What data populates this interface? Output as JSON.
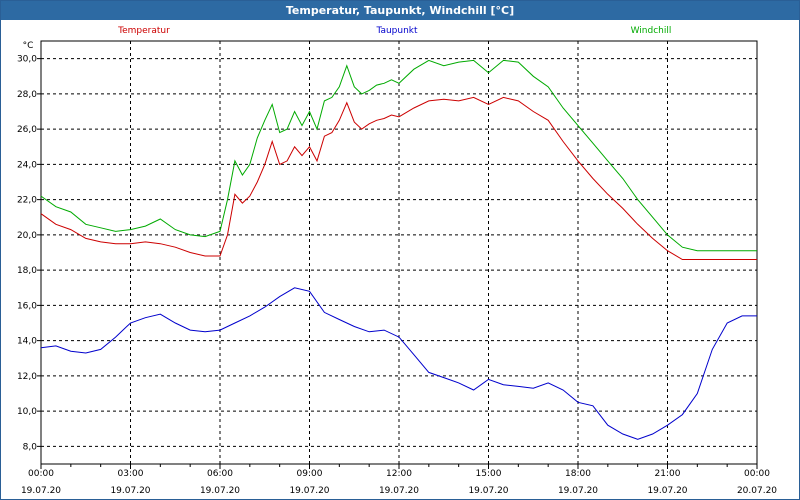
{
  "window": {
    "title": "Temperatur, Taupunkt, Windchill [°C]"
  },
  "chart_data": {
    "type": "line",
    "title": "Temperatur, Taupunkt, Windchill [°C]",
    "ylabel": "°C",
    "ylim": [
      7.0,
      31.0
    ],
    "yticks": [
      "8,0",
      "10,0",
      "12,0",
      "14,0",
      "16,0",
      "18,0",
      "20,0",
      "22,0",
      "24,0",
      "26,0",
      "28,0",
      "30,0"
    ],
    "xlim_hours": [
      0,
      24
    ],
    "xticks": [
      {
        "time": "00:00",
        "date": "19.07.20"
      },
      {
        "time": "03:00",
        "date": "19.07.20"
      },
      {
        "time": "06:00",
        "date": "19.07.20"
      },
      {
        "time": "09:00",
        "date": "19.07.20"
      },
      {
        "time": "12:00",
        "date": "19.07.20"
      },
      {
        "time": "15:00",
        "date": "19.07.20"
      },
      {
        "time": "18:00",
        "date": "19.07.20"
      },
      {
        "time": "21:00",
        "date": "19.07.20"
      },
      {
        "time": "00:00",
        "date": "20.07.20"
      }
    ],
    "grid": true,
    "legend": "top",
    "series": [
      {
        "name": "Temperatur",
        "color": "#cc0000",
        "x": [
          0,
          0.5,
          1,
          1.5,
          2,
          2.5,
          3,
          3.5,
          4,
          4.5,
          5,
          5.5,
          6,
          6.25,
          6.5,
          6.75,
          7,
          7.25,
          7.5,
          7.75,
          8,
          8.25,
          8.5,
          8.75,
          9,
          9.25,
          9.5,
          9.75,
          10,
          10.25,
          10.5,
          10.75,
          11,
          11.25,
          11.5,
          11.75,
          12,
          12.5,
          13,
          13.5,
          14,
          14.5,
          15,
          15.5,
          16,
          16.5,
          17,
          17.5,
          18,
          18.5,
          19,
          19.5,
          20,
          20.5,
          21,
          21.5,
          22,
          22.5,
          23,
          23.5,
          24
        ],
        "y": [
          21.2,
          20.6,
          20.3,
          19.8,
          19.6,
          19.5,
          19.5,
          19.6,
          19.5,
          19.3,
          19.0,
          18.8,
          18.8,
          20.0,
          22.3,
          21.8,
          22.2,
          23.0,
          24.0,
          25.3,
          24.0,
          24.2,
          25.0,
          24.5,
          25.0,
          24.2,
          25.6,
          25.8,
          26.5,
          27.5,
          26.4,
          26.0,
          26.3,
          26.5,
          26.6,
          26.8,
          26.7,
          27.2,
          27.6,
          27.7,
          27.6,
          27.8,
          27.4,
          27.8,
          27.6,
          27.0,
          26.5,
          25.3,
          24.2,
          23.2,
          22.3,
          21.5,
          20.6,
          19.8,
          19.1,
          18.6,
          18.6,
          18.6,
          18.6,
          18.6,
          18.6
        ],
        "x_note": ""
      },
      {
        "name": "Taupunkt",
        "color": "#0000cc",
        "x": [
          0,
          0.5,
          1,
          1.5,
          2,
          2.5,
          3,
          3.5,
          4,
          4.5,
          5,
          5.5,
          6,
          6.5,
          7,
          7.5,
          8,
          8.5,
          9,
          9.5,
          10,
          10.5,
          11,
          11.5,
          12,
          12.5,
          13,
          13.5,
          14,
          14.5,
          15,
          15.5,
          16,
          16.5,
          17,
          17.5,
          18,
          18.5,
          19,
          19.5,
          20,
          20.5,
          21,
          21.5,
          22,
          22.5,
          23,
          23.5,
          24
        ],
        "y": [
          13.6,
          13.7,
          13.4,
          13.3,
          13.5,
          14.2,
          15.0,
          15.3,
          15.5,
          15.0,
          14.6,
          14.5,
          14.6,
          15.0,
          15.4,
          15.9,
          16.5,
          17.0,
          16.8,
          15.6,
          15.2,
          14.8,
          14.5,
          14.6,
          14.2,
          13.2,
          12.2,
          11.9,
          11.6,
          11.2,
          11.8,
          11.5,
          11.4,
          11.3,
          11.6,
          11.2,
          10.5,
          10.3,
          9.2,
          8.7,
          8.4,
          8.7,
          9.2,
          9.8,
          11.0,
          13.5,
          15.0,
          15.4,
          15.4
        ]
      },
      {
        "name": "Windchill",
        "color": "#00aa00",
        "x": [
          0,
          0.5,
          1,
          1.5,
          2,
          2.5,
          3,
          3.5,
          4,
          4.5,
          5,
          5.5,
          6,
          6.25,
          6.5,
          6.75,
          7,
          7.25,
          7.5,
          7.75,
          8,
          8.25,
          8.5,
          8.75,
          9,
          9.25,
          9.5,
          9.75,
          10,
          10.25,
          10.5,
          10.75,
          11,
          11.25,
          11.5,
          11.75,
          12,
          12.5,
          13,
          13.5,
          14,
          14.5,
          15,
          15.5,
          16,
          16.5,
          17,
          17.5,
          18,
          18.5,
          19,
          19.5,
          20,
          20.5,
          21,
          21.5,
          22,
          22.5,
          23,
          23.5,
          24
        ],
        "y": [
          22.2,
          21.6,
          21.3,
          20.6,
          20.4,
          20.2,
          20.3,
          20.5,
          20.9,
          20.3,
          20.0,
          19.9,
          20.2,
          22.0,
          24.2,
          23.4,
          24.0,
          25.5,
          26.5,
          27.4,
          25.8,
          26.0,
          27.0,
          26.2,
          27.0,
          26.0,
          27.6,
          27.8,
          28.4,
          29.6,
          28.4,
          28.0,
          28.2,
          28.5,
          28.6,
          28.8,
          28.6,
          29.4,
          29.9,
          29.6,
          29.8,
          29.9,
          29.2,
          29.9,
          29.8,
          29.0,
          28.4,
          27.2,
          26.2,
          25.2,
          24.2,
          23.2,
          22.0,
          21.0,
          20.0,
          19.3,
          19.1,
          19.1,
          19.1,
          19.1,
          19.1
        ]
      }
    ]
  }
}
